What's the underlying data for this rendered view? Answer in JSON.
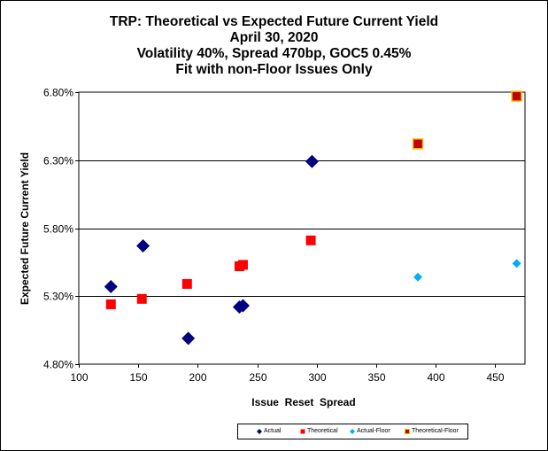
{
  "chart_data": {
    "type": "scatter",
    "title": [
      "TRP: Theoretical vs Expected Future Current Yield",
      "April 30, 2020",
      "Volatility 40%, Spread 470bp, GOC5 0.45%",
      "Fit with non-Floor Issues Only"
    ],
    "xlabel": "Issue  Reset  Spread",
    "ylabel": "Expected Future Current Yield",
    "xlim": [
      100,
      475
    ],
    "ylim": [
      4.8,
      6.8
    ],
    "x_ticks": [
      100,
      150,
      200,
      250,
      300,
      350,
      400,
      450
    ],
    "x_tick_labels": [
      "100",
      "150",
      "200",
      "250",
      "300",
      "350",
      "400",
      "450"
    ],
    "y_ticks": [
      4.8,
      5.3,
      5.8,
      6.3,
      6.8
    ],
    "y_tick_labels": [
      "4.80%",
      "5.30%",
      "5.80%",
      "6.30%",
      "6.80%"
    ],
    "grid": "horizontal",
    "legend_position": "bottom",
    "series": [
      {
        "name": "Actual",
        "marker": "diamond",
        "color": "#000080",
        "points": [
          {
            "x": 127,
            "y": 5.37
          },
          {
            "x": 154,
            "y": 5.67
          },
          {
            "x": 192,
            "y": 4.99
          },
          {
            "x": 235,
            "y": 5.22
          },
          {
            "x": 238,
            "y": 5.23
          },
          {
            "x": 296,
            "y": 6.29
          }
        ]
      },
      {
        "name": "Theoretical",
        "marker": "square",
        "color": "#ff0000",
        "points": [
          {
            "x": 127,
            "y": 5.24
          },
          {
            "x": 153,
            "y": 5.28
          },
          {
            "x": 191,
            "y": 5.39
          },
          {
            "x": 235,
            "y": 5.52
          },
          {
            "x": 238,
            "y": 5.53
          },
          {
            "x": 295,
            "y": 5.71
          }
        ]
      },
      {
        "name": "Actual-Floor",
        "marker": "diamond-small",
        "color": "#00b0f0",
        "points": [
          {
            "x": 385,
            "y": 5.44
          },
          {
            "x": 468,
            "y": 5.54
          }
        ]
      },
      {
        "name": "Theoretical-Floor",
        "marker": "square-outlined",
        "color": "#c00000",
        "edge_color": "#ffc000",
        "points": [
          {
            "x": 385,
            "y": 6.42
          },
          {
            "x": 468,
            "y": 6.77
          }
        ]
      }
    ]
  }
}
